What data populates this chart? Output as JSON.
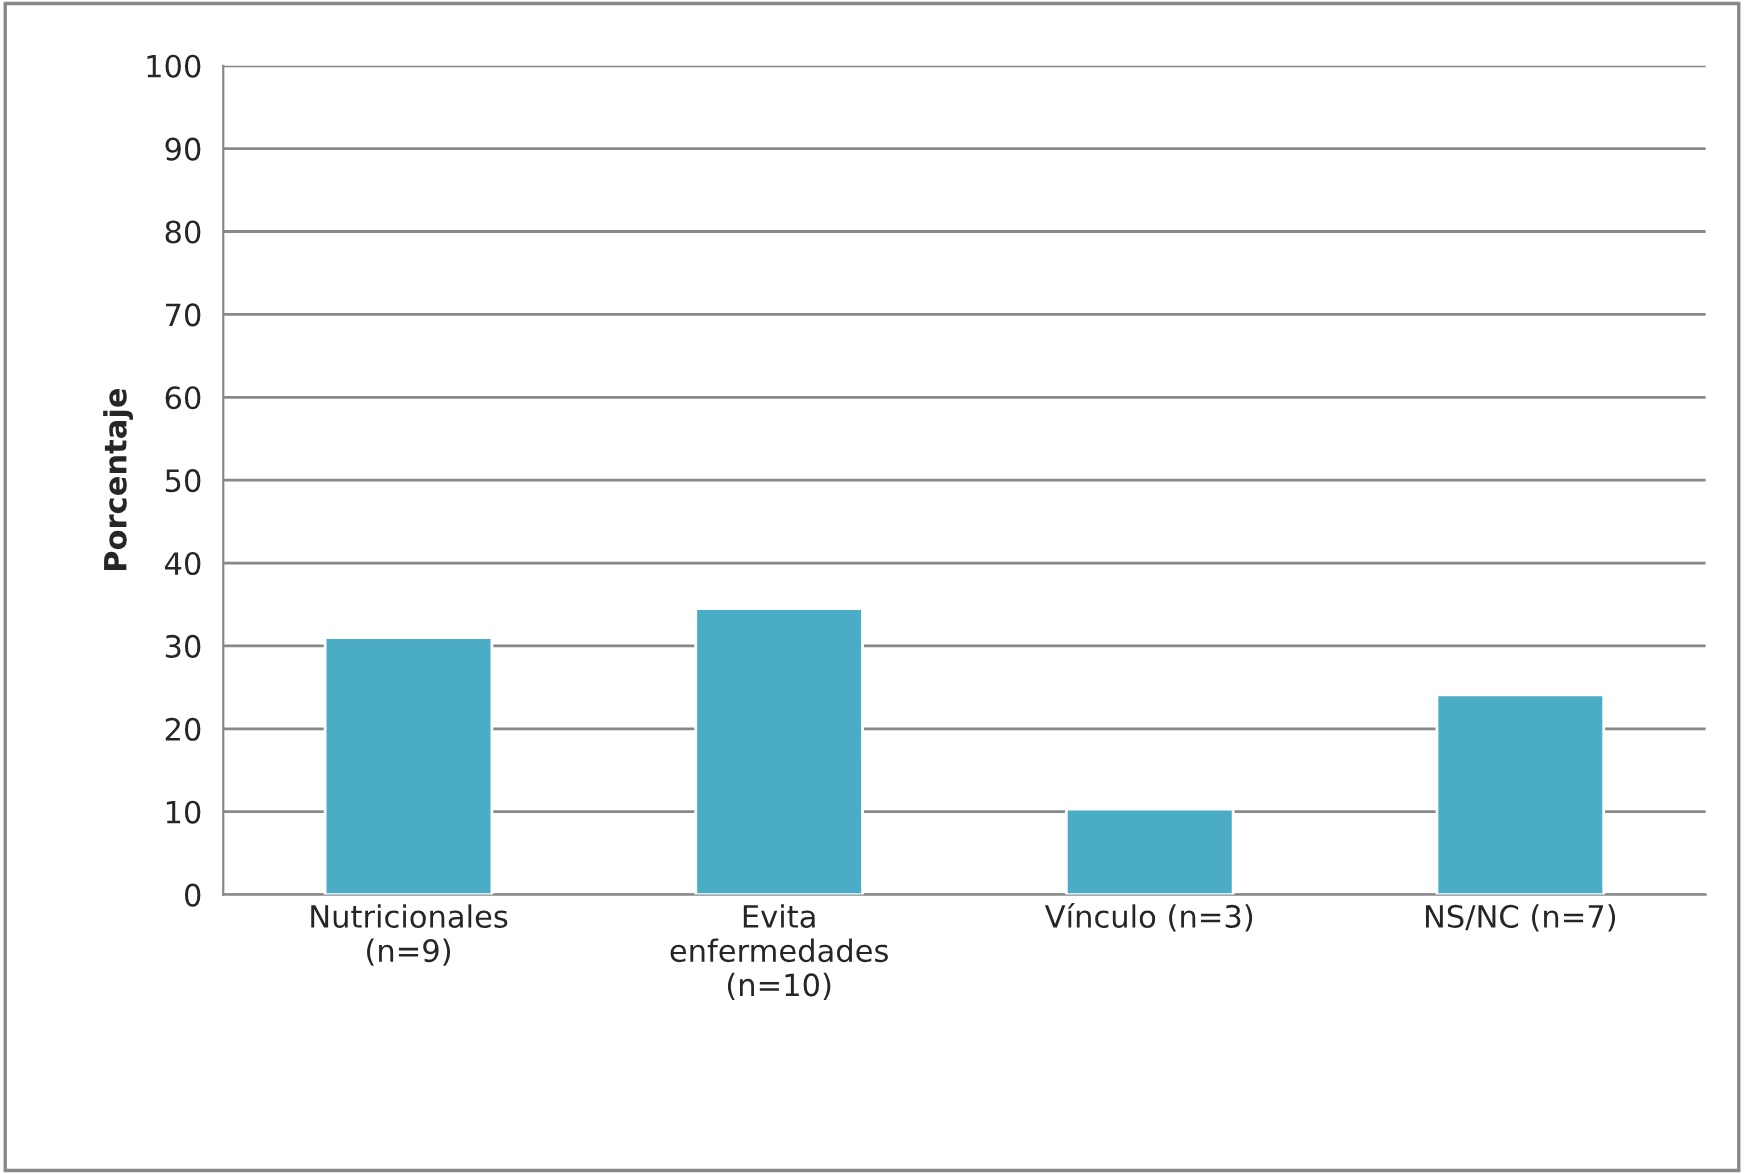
{
  "chart_data": {
    "type": "bar",
    "ylabel": "Porcentaje",
    "categories": [
      "Nutricionales\n(n=9)",
      "Evita\nenfermedades\n(n=10)",
      "Vínculo (n=3)",
      "NS/NC (n=7)"
    ],
    "values": [
      31.0,
      34.5,
      10.3,
      24.1
    ],
    "color": "#4bacc6",
    "ylim": [
      0,
      100
    ],
    "yticks": [
      0,
      10,
      20,
      30,
      40,
      50,
      60,
      70,
      80,
      90,
      100
    ],
    "grid": "y",
    "legend": false
  }
}
